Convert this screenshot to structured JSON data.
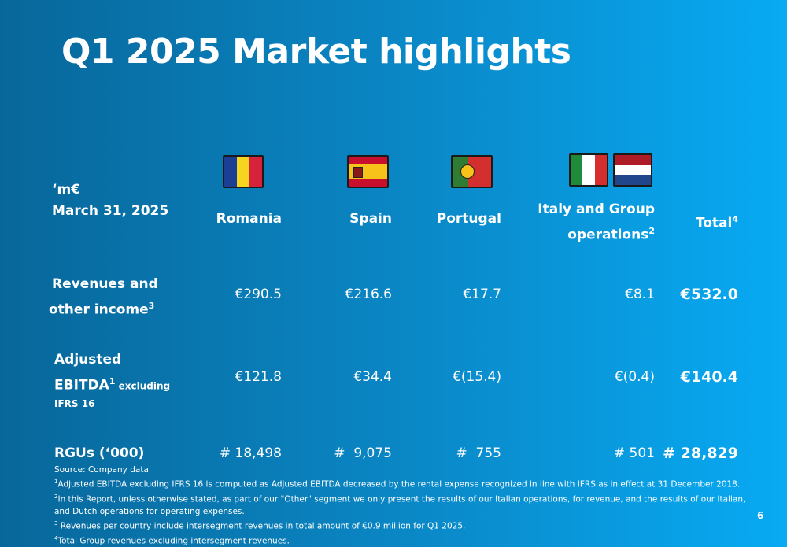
{
  "title": "Q1 2025 Market highlights",
  "header": {
    "unit": "‘m€",
    "date": "March 31, 2025",
    "columns": [
      {
        "label": "Romania",
        "flag": "romania-flag"
      },
      {
        "label": "Spain",
        "flag": "spain-flag"
      },
      {
        "label": "Portugal",
        "flag": "portugal-flag"
      },
      {
        "label": "Italy and Group",
        "label2": "operations",
        "sup": "2",
        "flags": [
          "italy-flag",
          "netherlands-flag"
        ]
      },
      {
        "label": "Total",
        "sup": "4"
      }
    ]
  },
  "rows": [
    {
      "label_line1": "Revenues and",
      "label_line2": "other income",
      "sup": "3",
      "values": [
        "€290.5",
        "€216.6",
        "€17.7",
        "€8.1",
        "€532.0"
      ]
    },
    {
      "label_line1": "Adjusted",
      "label_line2": "EBITDA",
      "sup": "1",
      "label_suffix": " excluding",
      "label_line3": "IFRS 16",
      "values": [
        "€121.8",
        "€34.4",
        "€(15.4)",
        "€(0.4)",
        "€140.4"
      ]
    },
    {
      "label_line1": "RGUs (‘000)",
      "values": [
        "# 18,498",
        "#  9,075",
        "#  755",
        "# 501",
        "# 28,829"
      ]
    }
  ],
  "notes": {
    "source": "Source: Company data",
    "n1_sup": "1",
    "n1": "Adjusted EBITDA excluding IFRS 16 is computed as Adjusted EBITDA decreased by the rental expense recognized in line with IFRS as in effect at 31 December 2018.",
    "n2_sup": "2",
    "n2": "In this Report, unless otherwise stated, as part of our \"Other\" segment we only present the results of our Italian operations, for revenue, and the results of our Italian, and Dutch operations  for operating expenses.",
    "n3_sup": "3",
    "n3": " Revenues per country include intersegment revenues in total amount of €0.9 million for Q1 2025.",
    "n4_sup": "4",
    "n4": "Total Group revenues excluding intersegment revenues."
  },
  "page_number": "6"
}
